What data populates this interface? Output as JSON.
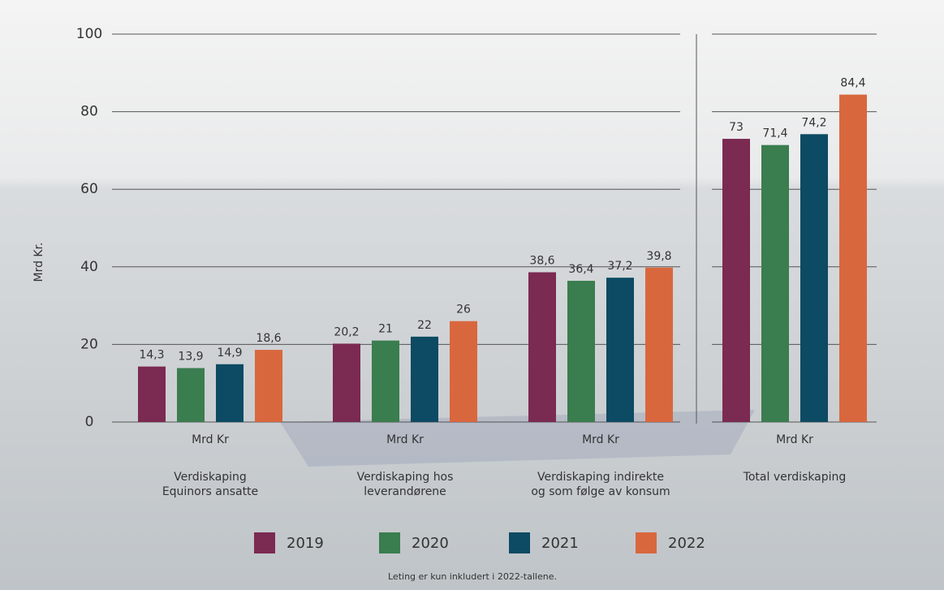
{
  "chart_data": {
    "type": "bar",
    "y_label": "Mrd Kr.",
    "categories": [
      "Verdiskaping\nEquinors ansatte",
      "Verdiskaping hos\nleverandørene",
      "Verdiskaping indirekte\nog som følge av konsum",
      "Total verdiskaping"
    ],
    "category_units": [
      "Mrd Kr",
      "Mrd Kr",
      "Mrd Kr",
      "Mrd Kr"
    ],
    "series": [
      {
        "name": "2019",
        "color": "#7b2a52",
        "values": [
          14.3,
          20.2,
          38.6,
          73
        ],
        "value_labels": [
          "14,3",
          "20,2",
          "38,6",
          "73"
        ]
      },
      {
        "name": "2020",
        "color": "#3a7d4f",
        "values": [
          13.9,
          21,
          36.4,
          71.4
        ],
        "value_labels": [
          "13,9",
          "21",
          "36,4",
          "71,4"
        ]
      },
      {
        "name": "2021",
        "color": "#0d4a63",
        "values": [
          14.9,
          22,
          37.2,
          74.2
        ],
        "value_labels": [
          "14,9",
          "22",
          "37,2",
          "74,2"
        ]
      },
      {
        "name": "2022",
        "color": "#d9673e",
        "values": [
          18.6,
          26,
          39.8,
          84.4
        ],
        "value_labels": [
          "18,6",
          "26",
          "39,8",
          "84,4"
        ]
      }
    ],
    "ylim": [
      0,
      100
    ],
    "yticks": [
      0,
      20,
      40,
      60,
      80,
      100
    ],
    "grid": true,
    "legend": "bottom",
    "footnote": "Leting er kun inkludert i 2022-tallene."
  }
}
